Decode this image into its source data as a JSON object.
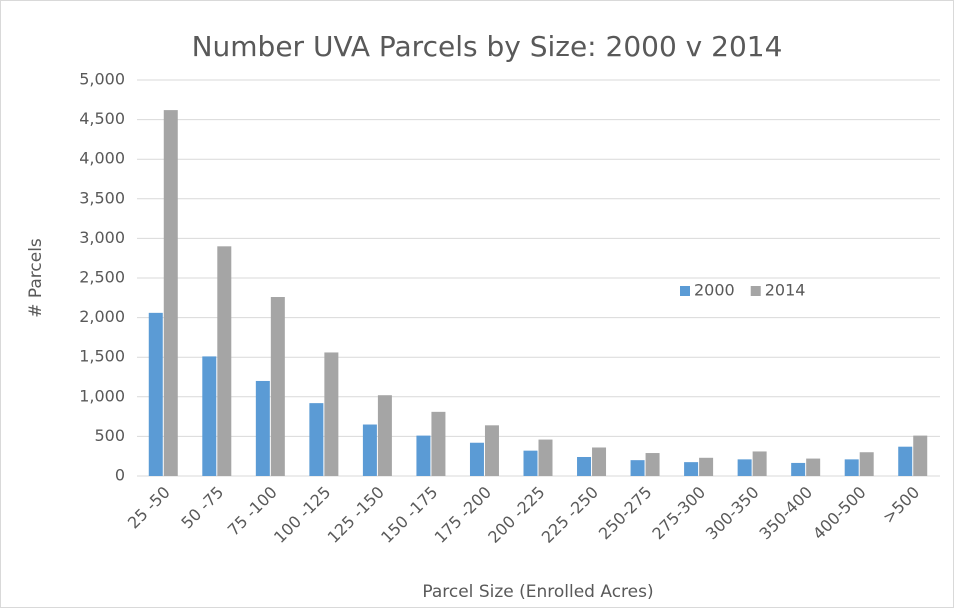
{
  "chart_data": {
    "type": "bar",
    "title": "Number UVA Parcels by Size: 2000 v 2014",
    "x_label": "Parcel Size (Enrolled Acres)",
    "y_label": "# Parcels",
    "categories": [
      "25 -50",
      "50 -75",
      "75 -100",
      "100 -125",
      "125 -150",
      "150 -175",
      "175 -200",
      "200 -225",
      "225 -250",
      "250-275",
      "275-300",
      "300-350",
      "350-400",
      "400-500",
      ">500"
    ],
    "series": [
      {
        "name": "2000",
        "color": "#5b9bd5",
        "values": [
          2060,
          1510,
          1200,
          920,
          650,
          510,
          420,
          320,
          240,
          200,
          175,
          210,
          165,
          210,
          370
        ]
      },
      {
        "name": "2014",
        "color": "#a5a5a5",
        "values": [
          4620,
          2900,
          2260,
          1560,
          1020,
          810,
          640,
          460,
          360,
          290,
          230,
          310,
          220,
          300,
          510
        ]
      }
    ],
    "ylim": [
      0,
      5000
    ],
    "yticks": [
      0,
      500,
      {
        "value": 1000,
        "label": "1,000"
      },
      {
        "value": 1500,
        "label": "1,500"
      },
      {
        "value": 2000,
        "label": "2,000"
      },
      {
        "value": 2500,
        "label": "2,500"
      },
      {
        "value": 3000,
        "label": "3,000"
      },
      {
        "value": 3500,
        "label": "3,500"
      },
      {
        "value": 4000,
        "label": "4,000"
      },
      {
        "value": 4500,
        "label": "4,500"
      },
      {
        "value": 5000,
        "label": "5,000"
      }
    ],
    "grid": true,
    "legend": "right"
  }
}
